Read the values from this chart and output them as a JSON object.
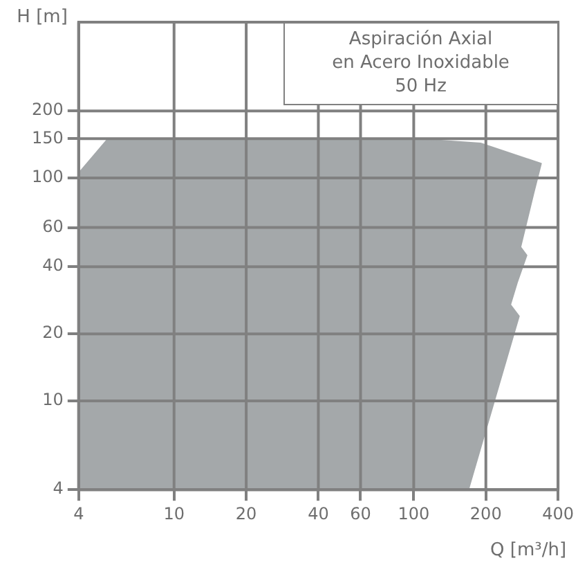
{
  "chart_data": {
    "type": "area",
    "title": "Aspiración Axial\nen Acero Inoxidable\n50 Hz",
    "xlabel": "Q [m³/h]",
    "ylabel": "H [m]",
    "log": "xy",
    "grid": true,
    "xlim": [
      4,
      400
    ],
    "xticks": [
      4,
      10,
      20,
      40,
      60,
      100,
      200,
      400
    ],
    "ylim": [
      4,
      500
    ],
    "yticks": [
      4,
      10,
      20,
      40,
      60,
      100,
      150,
      200
    ],
    "series": [
      {
        "color": "#a4a8aa",
        "x": [
          4,
          4,
          5.3,
          100,
          190,
          340,
          316,
          279,
          296,
          270,
          253,
          275,
          169
        ],
        "values": [
          4,
          105,
          150,
          150,
          143,
          116,
          85,
          49,
          45,
          34,
          27,
          24,
          4
        ]
      }
    ]
  }
}
